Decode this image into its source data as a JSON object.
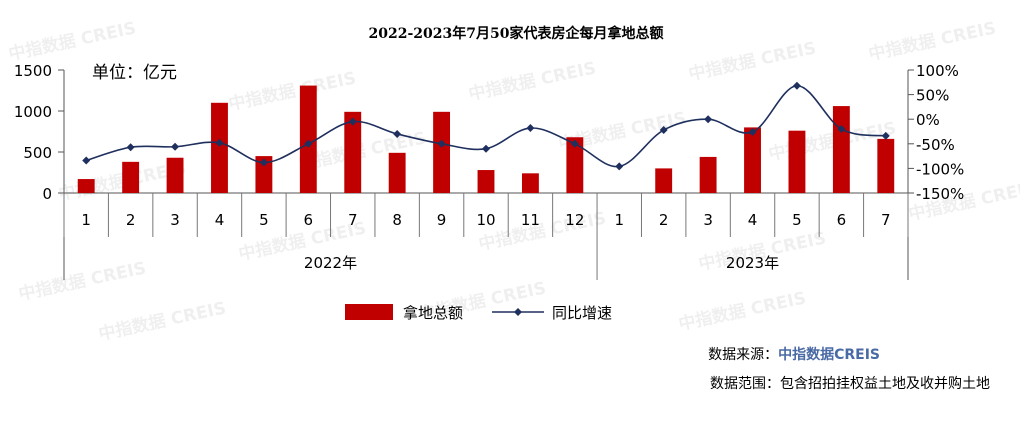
{
  "chart_data": {
    "type": "bar",
    "title": "2022-2023年7月50家代表房企每月拿地总额",
    "unit_label": "单位：亿元",
    "categories": [
      "1",
      "2",
      "3",
      "4",
      "5",
      "6",
      "7",
      "8",
      "9",
      "10",
      "11",
      "12",
      "1",
      "2",
      "3",
      "4",
      "5",
      "6",
      "7"
    ],
    "year_groups": [
      {
        "label": "2022年",
        "count": 12
      },
      {
        "label": "2023年",
        "count": 7
      }
    ],
    "series": [
      {
        "name": "拿地总额",
        "type": "bar",
        "axis": "left",
        "color": "#c00000",
        "values": [
          170,
          380,
          430,
          1100,
          450,
          1310,
          990,
          490,
          990,
          280,
          240,
          680,
          0,
          300,
          440,
          800,
          760,
          1060,
          660
        ]
      },
      {
        "name": "同比增速",
        "type": "line",
        "axis": "right",
        "color": "#1f2f5e",
        "unit": "%",
        "values": [
          -84,
          -57,
          -56,
          -48,
          -88,
          -50,
          -5,
          -30,
          -50,
          -60,
          -18,
          -50,
          -96,
          -22,
          0,
          -26,
          68,
          -20,
          -34
        ]
      }
    ],
    "y_left": {
      "min": 0,
      "max": 1500,
      "ticks": [
        "0",
        "500",
        "1000",
        "1500"
      ]
    },
    "y_right": {
      "min": -150,
      "max": 100,
      "ticks": [
        "-150%",
        "-100%",
        "-50%",
        "0%",
        "50%",
        "100%"
      ]
    },
    "legend": {
      "placement": "bottom"
    },
    "grid": false
  },
  "footer": {
    "source_prefix": "数据来源：",
    "source_brand": "中指数据CREIS",
    "scope": "数据范围：包含招拍挂权益土地及收并购土地"
  },
  "watermark": "中指数据 CREIS"
}
